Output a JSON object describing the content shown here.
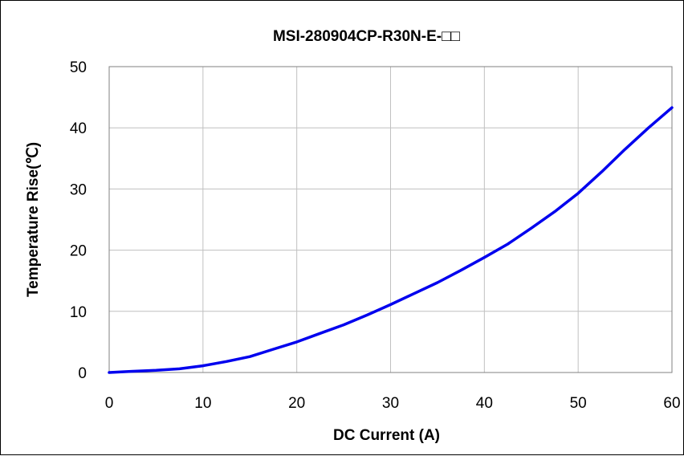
{
  "chart_data": {
    "type": "line",
    "title": "MSI-280904CP-R30N-E-□□",
    "xlabel": "DC Current (A)",
    "ylabel": "Temperature Rise(℃)",
    "xlim": [
      0,
      60
    ],
    "ylim": [
      0,
      50
    ],
    "xticks": [
      0,
      10,
      20,
      30,
      40,
      50,
      60
    ],
    "yticks": [
      0,
      10,
      20,
      30,
      40,
      50
    ],
    "grid": true,
    "series": [
      {
        "color": "#0000ee",
        "x": [
          0,
          2.5,
          5,
          7.5,
          10,
          12.5,
          15,
          17.5,
          20,
          22.5,
          25,
          27.5,
          30,
          32.5,
          35,
          37.5,
          40,
          42.5,
          45,
          47.5,
          50,
          52.5,
          55,
          57.5,
          60
        ],
        "y": [
          0,
          0.2,
          0.35,
          0.6,
          1.1,
          1.8,
          2.6,
          3.8,
          5.0,
          6.4,
          7.8,
          9.4,
          11.1,
          12.9,
          14.7,
          16.7,
          18.8,
          21.0,
          23.6,
          26.3,
          29.3,
          32.8,
          36.5,
          40.0,
          43.3
        ]
      }
    ]
  }
}
